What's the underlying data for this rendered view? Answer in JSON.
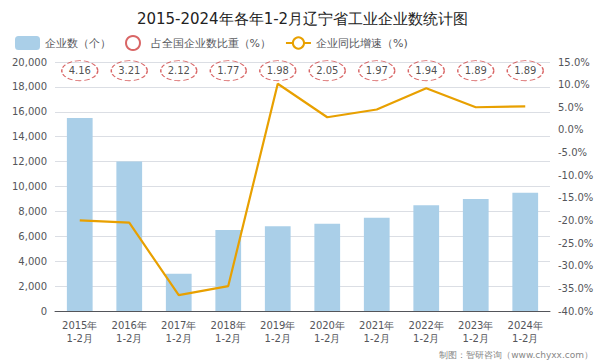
{
  "chart_data": {
    "type": "bar",
    "title": "2015-2024年各年1-2月辽宁省工业企业数统计图",
    "categories": [
      "2015年\n1-2月",
      "2016年\n1-2月",
      "2017年\n1-2月",
      "2018年\n1-2月",
      "2019年\n1-2月",
      "2020年\n1-2月",
      "2021年\n1-2月",
      "2022年\n1-2月",
      "2023年\n1-2月",
      "2024年\n1-2月"
    ],
    "series": [
      {
        "name": "企业数（个）",
        "type": "bar",
        "color": "#aacfe8",
        "values": [
          15500,
          12000,
          3000,
          6500,
          6800,
          7000,
          7500,
          8500,
          9000,
          9500
        ]
      },
      {
        "name": "占全国企业数比重（%）",
        "type": "scatter",
        "marker": "circle",
        "line_style": "dashed",
        "color": "#d04040",
        "data_labels": true,
        "values": [
          4.16,
          3.21,
          2.12,
          1.77,
          1.98,
          2.05,
          1.97,
          1.94,
          1.89,
          1.89
        ]
      },
      {
        "name": "企业同比增速（%)",
        "type": "line",
        "axis": "y2",
        "color": "#E8A000",
        "values": [
          -20.0,
          -20.5,
          -36.5,
          -34.5,
          10.2,
          2.8,
          4.5,
          9.2,
          5.0,
          5.2
        ]
      }
    ],
    "ylim": [
      0,
      20000
    ],
    "yticks": [
      0,
      {
        "value": 2000,
        "label": "2,000"
      },
      {
        "value": 4000,
        "label": "4,000"
      },
      {
        "value": 6000,
        "label": "6,000"
      },
      {
        "value": 8000,
        "label": "8,000"
      },
      {
        "value": 10000,
        "label": "10,000"
      },
      {
        "value": 12000,
        "label": "12,000"
      },
      {
        "value": 14000,
        "label": "14,000"
      },
      {
        "value": 16000,
        "label": "16,000"
      },
      {
        "value": 18000,
        "label": "18,000"
      },
      {
        "value": 20000,
        "label": "20,000"
      }
    ],
    "y2lim": [
      -40.0,
      15.0
    ],
    "y2ticks": [
      {
        "value": -40.0,
        "label": "-40.0%"
      },
      {
        "value": -35.0,
        "label": "-35.0%"
      },
      {
        "value": -30.0,
        "label": "-30.0%"
      },
      {
        "value": -25.0,
        "label": "-25.0%"
      },
      {
        "value": -20.0,
        "label": "-20.0%"
      },
      {
        "value": -15.0,
        "label": "-15.0%"
      },
      {
        "value": -10.0,
        "label": "-10.0%"
      },
      {
        "value": -5.0,
        "label": "-5.0%"
      },
      {
        "value": 0.0,
        "label": "0.0%"
      },
      {
        "value": 5.0,
        "label": "5.0%"
      },
      {
        "value": 10.0,
        "label": "10.0%"
      },
      {
        "value": 15.0,
        "label": "15.0%"
      }
    ],
    "annotations": [
      "制图：智研咨询（www.chyxx.com）"
    ],
    "grid": true,
    "legend": "upper left"
  }
}
